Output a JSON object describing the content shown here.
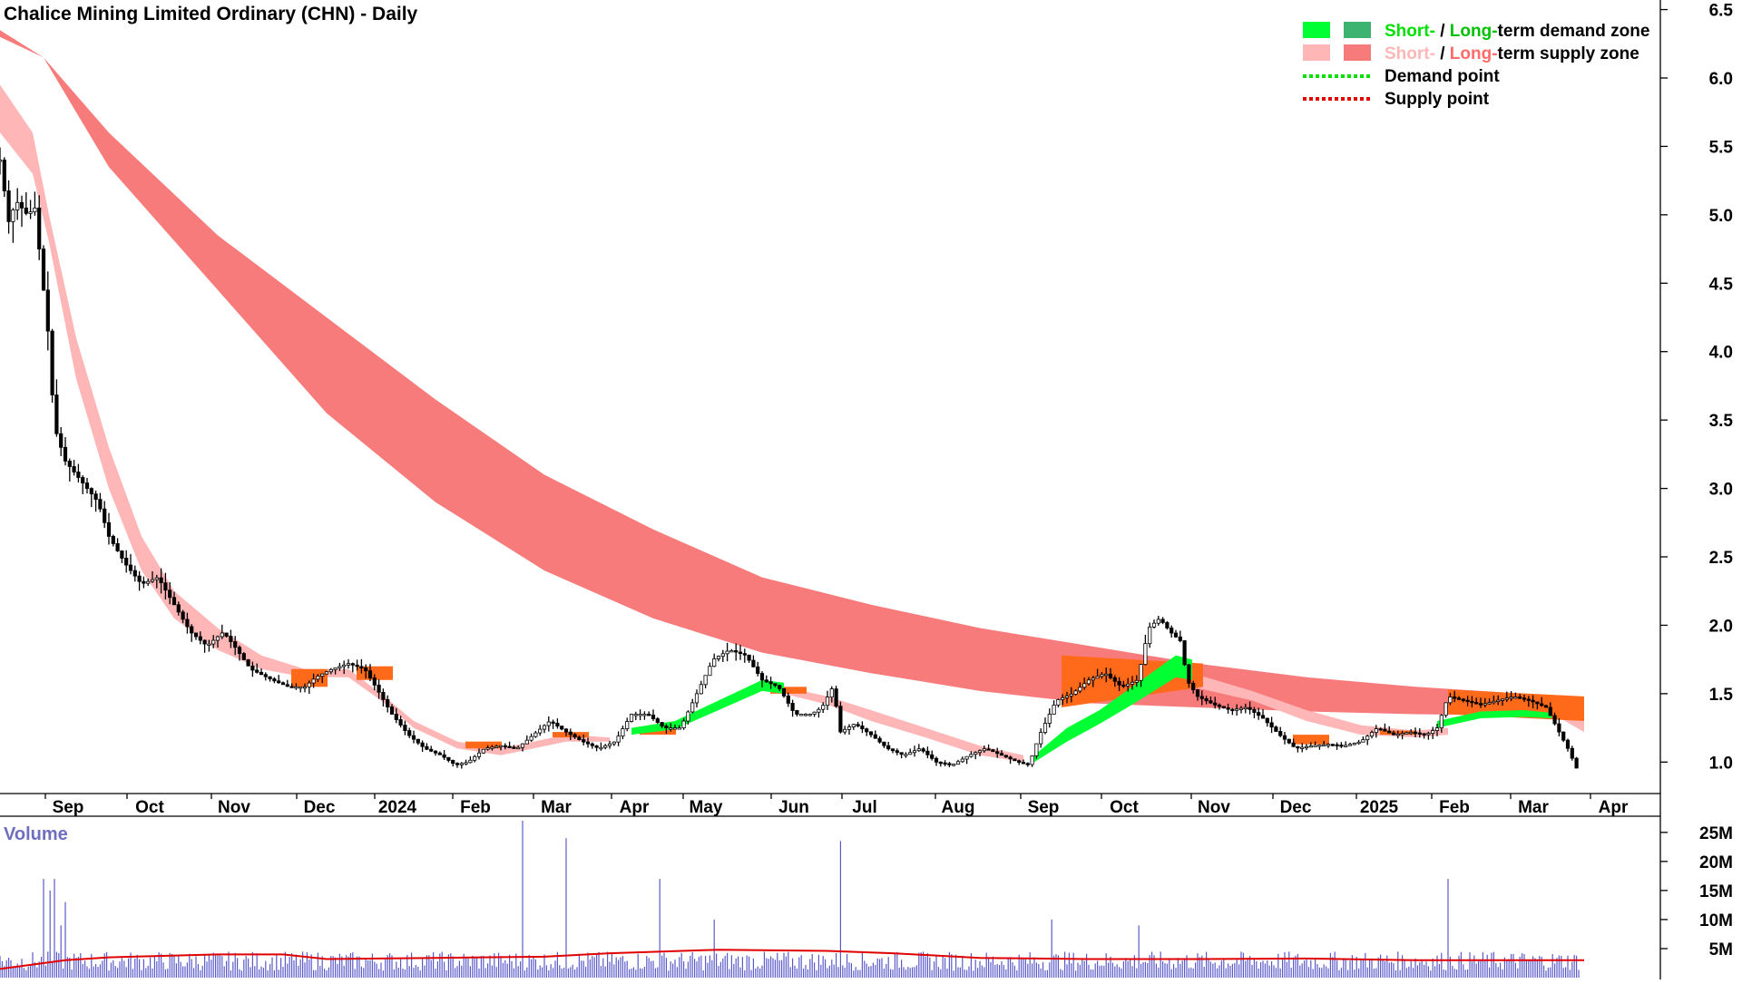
{
  "chart_data": [
    {
      "type": "line",
      "title": "Chalice Mining Limited Ordinary (CHN) - Daily",
      "x_ticks": [
        "Sep",
        "Oct",
        "Nov",
        "Dec",
        "2024",
        "Feb",
        "Mar",
        "Apr",
        "May",
        "Jun",
        "Jul",
        "Aug",
        "Sep",
        "Oct",
        "Nov",
        "Dec",
        "2025",
        "Feb",
        "Mar",
        "Apr"
      ],
      "y_ticks": [
        "6.5",
        "6.0",
        "5.5",
        "5.0",
        "4.5",
        "4.0",
        "3.5",
        "3.0",
        "2.5",
        "2.0",
        "1.5",
        "1.0"
      ],
      "ylim": [
        0.77,
        6.57
      ],
      "legend": {
        "placement": "top-right",
        "items": [
          {
            "prefix": "Short-",
            "sep": " / ",
            "middle": "Long-",
            "suffix": "term demand zone",
            "prefix_color": "#00e000",
            "middle_color": "#00c000",
            "swatches": [
              "#00ff33",
              "#3cb371"
            ]
          },
          {
            "prefix": "Short-",
            "sep": " / ",
            "middle": "Long-",
            "suffix": "term supply zone",
            "prefix_color": "#ffb6b6",
            "middle_color": "#ff6a6a",
            "swatches": [
              "#ffb6b6",
              "#f77b7b"
            ]
          },
          {
            "label": "Demand point",
            "line_color": "#00e000"
          },
          {
            "label": "Supply point",
            "line_color": "#e00000"
          }
        ]
      },
      "price_path": [
        [
          0,
          5.4
        ],
        [
          8,
          4.95
        ],
        [
          15,
          5.1
        ],
        [
          25,
          5.0
        ],
        [
          32,
          5.05
        ],
        [
          44,
          4.15
        ],
        [
          50,
          3.45
        ],
        [
          60,
          3.2
        ],
        [
          75,
          3.05
        ],
        [
          90,
          2.9
        ],
        [
          100,
          2.65
        ],
        [
          115,
          2.45
        ],
        [
          130,
          2.3
        ],
        [
          145,
          2.35
        ],
        [
          160,
          2.15
        ],
        [
          175,
          1.95
        ],
        [
          190,
          1.85
        ],
        [
          205,
          1.95
        ],
        [
          215,
          1.85
        ],
        [
          230,
          1.68
        ],
        [
          250,
          1.6
        ],
        [
          265,
          1.55
        ],
        [
          280,
          1.55
        ],
        [
          290,
          1.62
        ],
        [
          305,
          1.68
        ],
        [
          320,
          1.72
        ],
        [
          335,
          1.68
        ],
        [
          345,
          1.55
        ],
        [
          360,
          1.35
        ],
        [
          375,
          1.2
        ],
        [
          390,
          1.1
        ],
        [
          405,
          1.05
        ],
        [
          418,
          0.98
        ],
        [
          430,
          1.0
        ],
        [
          445,
          1.1
        ],
        [
          460,
          1.12
        ],
        [
          475,
          1.1
        ],
        [
          490,
          1.2
        ],
        [
          505,
          1.3
        ],
        [
          520,
          1.22
        ],
        [
          535,
          1.15
        ],
        [
          550,
          1.1
        ],
        [
          565,
          1.15
        ],
        [
          580,
          1.35
        ],
        [
          595,
          1.35
        ],
        [
          610,
          1.25
        ],
        [
          625,
          1.25
        ],
        [
          640,
          1.5
        ],
        [
          655,
          1.75
        ],
        [
          670,
          1.82
        ],
        [
          685,
          1.78
        ],
        [
          700,
          1.6
        ],
        [
          715,
          1.55
        ],
        [
          730,
          1.35
        ],
        [
          745,
          1.35
        ],
        [
          755,
          1.4
        ],
        [
          765,
          1.55
        ],
        [
          772,
          1.22
        ],
        [
          785,
          1.28
        ],
        [
          800,
          1.2
        ],
        [
          815,
          1.1
        ],
        [
          830,
          1.05
        ],
        [
          845,
          1.1
        ],
        [
          860,
          1.0
        ],
        [
          875,
          0.98
        ],
        [
          890,
          1.05
        ],
        [
          905,
          1.1
        ],
        [
          920,
          1.05
        ],
        [
          935,
          1.0
        ],
        [
          945,
          0.98
        ],
        [
          955,
          1.2
        ],
        [
          970,
          1.45
        ],
        [
          985,
          1.5
        ],
        [
          1000,
          1.6
        ],
        [
          1015,
          1.65
        ],
        [
          1030,
          1.55
        ],
        [
          1045,
          1.6
        ],
        [
          1055,
          1.98
        ],
        [
          1065,
          2.05
        ],
        [
          1075,
          1.95
        ],
        [
          1085,
          1.88
        ],
        [
          1090,
          1.6
        ],
        [
          1100,
          1.48
        ],
        [
          1115,
          1.42
        ],
        [
          1130,
          1.38
        ],
        [
          1145,
          1.4
        ],
        [
          1160,
          1.32
        ],
        [
          1175,
          1.2
        ],
        [
          1190,
          1.1
        ],
        [
          1205,
          1.12
        ],
        [
          1220,
          1.13
        ],
        [
          1235,
          1.12
        ],
        [
          1250,
          1.15
        ],
        [
          1265,
          1.25
        ],
        [
          1280,
          1.2
        ],
        [
          1295,
          1.22
        ],
        [
          1310,
          1.2
        ],
        [
          1320,
          1.25
        ],
        [
          1330,
          1.48
        ],
        [
          1345,
          1.45
        ],
        [
          1360,
          1.42
        ],
        [
          1375,
          1.45
        ],
        [
          1390,
          1.48
        ],
        [
          1405,
          1.45
        ],
        [
          1420,
          1.4
        ],
        [
          1430,
          1.25
        ],
        [
          1440,
          1.1
        ],
        [
          1450,
          0.92
        ]
      ],
      "supply_long_top": [
        [
          0,
          6.35
        ],
        [
          40,
          6.15
        ],
        [
          100,
          5.6
        ],
        [
          200,
          4.85
        ],
        [
          300,
          4.25
        ],
        [
          400,
          3.65
        ],
        [
          500,
          3.1
        ],
        [
          600,
          2.7
        ],
        [
          700,
          2.35
        ],
        [
          800,
          2.15
        ],
        [
          900,
          1.98
        ],
        [
          1000,
          1.85
        ],
        [
          1100,
          1.72
        ],
        [
          1200,
          1.62
        ],
        [
          1300,
          1.55
        ],
        [
          1400,
          1.5
        ],
        [
          1455,
          1.47
        ]
      ],
      "supply_long_bottom": [
        [
          0,
          6.3
        ],
        [
          40,
          6.15
        ],
        [
          100,
          5.35
        ],
        [
          200,
          4.45
        ],
        [
          300,
          3.55
        ],
        [
          400,
          2.9
        ],
        [
          500,
          2.4
        ],
        [
          600,
          2.05
        ],
        [
          700,
          1.8
        ],
        [
          800,
          1.65
        ],
        [
          900,
          1.52
        ],
        [
          1000,
          1.43
        ],
        [
          1100,
          1.4
        ],
        [
          1200,
          1.37
        ],
        [
          1300,
          1.35
        ],
        [
          1400,
          1.34
        ],
        [
          1455,
          1.3
        ]
      ],
      "supply_short_top": [
        [
          0,
          5.95
        ],
        [
          30,
          5.6
        ],
        [
          45,
          5.0
        ],
        [
          70,
          4.1
        ],
        [
          100,
          3.3
        ],
        [
          130,
          2.65
        ],
        [
          160,
          2.25
        ],
        [
          200,
          1.98
        ],
        [
          240,
          1.78
        ],
        [
          280,
          1.68
        ],
        [
          320,
          1.68
        ],
        [
          350,
          1.5
        ],
        [
          380,
          1.3
        ],
        [
          420,
          1.15
        ],
        [
          460,
          1.1
        ],
        [
          520,
          1.2
        ],
        [
          560,
          1.18
        ]
      ],
      "supply_short_bottom": [
        [
          0,
          5.6
        ],
        [
          30,
          5.3
        ],
        [
          45,
          4.8
        ],
        [
          70,
          3.8
        ],
        [
          100,
          3.0
        ],
        [
          130,
          2.4
        ],
        [
          160,
          2.05
        ],
        [
          200,
          1.82
        ],
        [
          240,
          1.68
        ],
        [
          280,
          1.62
        ],
        [
          320,
          1.62
        ],
        [
          350,
          1.45
        ],
        [
          380,
          1.25
        ],
        [
          420,
          1.1
        ],
        [
          460,
          1.05
        ],
        [
          520,
          1.15
        ],
        [
          560,
          1.15
        ]
      ],
      "supply_short_top_2": [
        [
          720,
          1.55
        ],
        [
          760,
          1.48
        ],
        [
          800,
          1.38
        ],
        [
          850,
          1.25
        ],
        [
          900,
          1.12
        ],
        [
          940,
          1.05
        ]
      ],
      "supply_short_bottom_2": [
        [
          720,
          1.5
        ],
        [
          760,
          1.42
        ],
        [
          800,
          1.3
        ],
        [
          850,
          1.18
        ],
        [
          900,
          1.05
        ],
        [
          940,
          1.0
        ]
      ],
      "supply_short_top_3": [
        [
          1095,
          1.65
        ],
        [
          1150,
          1.52
        ],
        [
          1200,
          1.38
        ],
        [
          1250,
          1.27
        ],
        [
          1300,
          1.23
        ],
        [
          1330,
          1.25
        ]
      ],
      "supply_short_bottom_3": [
        [
          1095,
          1.55
        ],
        [
          1150,
          1.45
        ],
        [
          1200,
          1.3
        ],
        [
          1250,
          1.2
        ],
        [
          1300,
          1.18
        ],
        [
          1330,
          1.2
        ]
      ],
      "supply_short_top_4": [
        [
          1420,
          1.42
        ],
        [
          1455,
          1.3
        ]
      ],
      "supply_short_bottom_4": [
        [
          1420,
          1.38
        ],
        [
          1455,
          1.22
        ]
      ],
      "demand_short_top": [
        [
          580,
          1.25
        ],
        [
          620,
          1.3
        ],
        [
          660,
          1.45
        ],
        [
          700,
          1.6
        ],
        [
          720,
          1.58
        ]
      ],
      "demand_short_bottom": [
        [
          580,
          1.2
        ],
        [
          620,
          1.24
        ],
        [
          660,
          1.38
        ],
        [
          700,
          1.52
        ],
        [
          720,
          1.5
        ]
      ],
      "demand_short_top_2": [
        [
          950,
          1.05
        ],
        [
          980,
          1.25
        ],
        [
          1010,
          1.38
        ],
        [
          1040,
          1.55
        ],
        [
          1080,
          1.78
        ],
        [
          1095,
          1.75
        ]
      ],
      "demand_short_bottom_2": [
        [
          950,
          1.0
        ],
        [
          980,
          1.15
        ],
        [
          1010,
          1.28
        ],
        [
          1040,
          1.42
        ],
        [
          1080,
          1.62
        ],
        [
          1095,
          1.6
        ]
      ],
      "demand_short_top_3": [
        [
          1320,
          1.3
        ],
        [
          1360,
          1.37
        ],
        [
          1400,
          1.38
        ],
        [
          1425,
          1.36
        ]
      ],
      "demand_short_bottom_3": [
        [
          1320,
          1.25
        ],
        [
          1360,
          1.32
        ],
        [
          1400,
          1.33
        ],
        [
          1425,
          1.32
        ]
      ],
      "overlap_orange": [
        [
          280,
          1.55,
          1.68
        ],
        [
          340,
          1.6,
          1.7
        ],
        [
          440,
          1.1,
          1.15
        ],
        [
          520,
          1.18,
          1.22
        ],
        [
          600,
          1.2,
          1.25
        ],
        [
          720,
          1.5,
          1.55
        ],
        [
          1200,
          1.13,
          1.2
        ],
        [
          1280,
          1.2,
          1.23
        ]
      ],
      "overlap_orange_block": [
        [
          975,
          1.78,
          1.4
        ],
        [
          1105,
          1.72,
          1.55
        ]
      ],
      "overlap_orange_block_2": [
        [
          1330,
          1.53,
          1.35
        ],
        [
          1455,
          1.48,
          1.3
        ]
      ]
    },
    {
      "type": "bar",
      "title": "Volume",
      "y_ticks": [
        "25M",
        "20M",
        "15M",
        "10M",
        "5M"
      ],
      "ylim": [
        0,
        27
      ],
      "spikes": [
        [
          40,
          17
        ],
        [
          46,
          15
        ],
        [
          50,
          17
        ],
        [
          55,
          9
        ],
        [
          60,
          13
        ],
        [
          480,
          27
        ],
        [
          520,
          24
        ],
        [
          605,
          17
        ],
        [
          655,
          10
        ],
        [
          772,
          23.5
        ],
        [
          965,
          10
        ],
        [
          1045,
          9
        ],
        [
          1330,
          17
        ],
        [
          1455,
          7
        ]
      ],
      "baseline_value": 3,
      "avg_path": [
        [
          0,
          1.5
        ],
        [
          60,
          3
        ],
        [
          100,
          3.5
        ],
        [
          200,
          4
        ],
        [
          260,
          4
        ],
        [
          300,
          3.2
        ],
        [
          400,
          3.4
        ],
        [
          500,
          3.6
        ],
        [
          560,
          4.2
        ],
        [
          660,
          4.8
        ],
        [
          760,
          4.6
        ],
        [
          820,
          4.2
        ],
        [
          900,
          3.4
        ],
        [
          1000,
          3.2
        ],
        [
          1100,
          3.2
        ],
        [
          1200,
          3.3
        ],
        [
          1300,
          3.0
        ],
        [
          1455,
          3.0
        ]
      ]
    }
  ]
}
